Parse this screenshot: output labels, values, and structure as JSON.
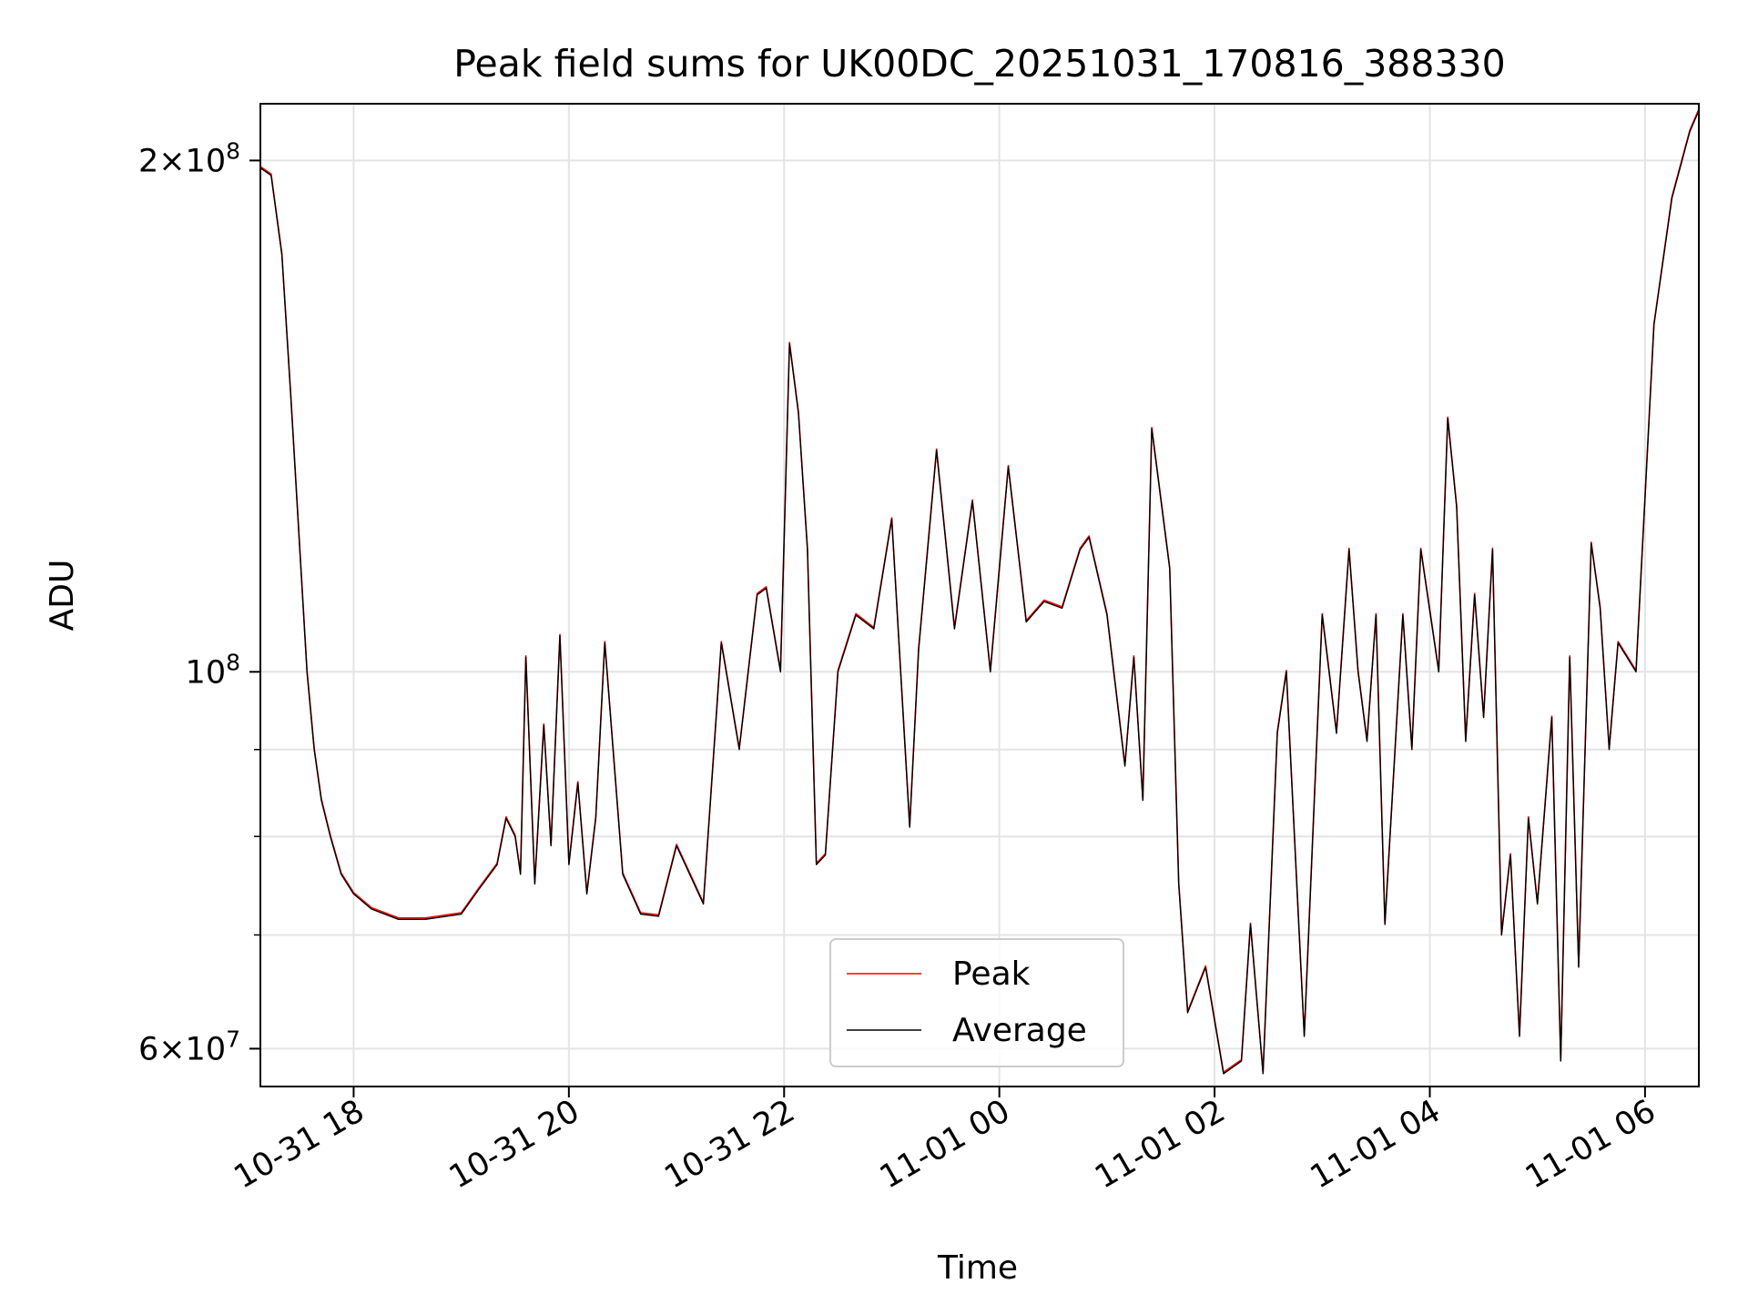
{
  "chart_data": {
    "type": "line",
    "title": "Peak field sums for UK00DC_20251031_170816_388330",
    "xlabel": "Time",
    "ylabel": "ADU",
    "yscale": "log",
    "xlim": [
      "2025-10-31T17:08",
      "2025-11-01T06:30"
    ],
    "ylim": [
      57000000,
      216000000
    ],
    "x_ticks": [
      {
        "value": "2025-10-31T18:00",
        "label": "10-31 18"
      },
      {
        "value": "2025-10-31T20:00",
        "label": "10-31 20"
      },
      {
        "value": "2025-10-31T22:00",
        "label": "10-31 22"
      },
      {
        "value": "2025-11-01T00:00",
        "label": "11-01 00"
      },
      {
        "value": "2025-11-01T02:00",
        "label": "11-01 02"
      },
      {
        "value": "2025-11-01T04:00",
        "label": "11-01 04"
      },
      {
        "value": "2025-11-01T06:00",
        "label": "11-01 06"
      }
    ],
    "y_major_ticks": [
      {
        "value": 60000000,
        "base": "6",
        "exp": "7"
      },
      {
        "value": 100000000,
        "base": "",
        "exp": "8"
      },
      {
        "value": 200000000,
        "base": "2",
        "exp": "8"
      }
    ],
    "y_minor_ticks": [
      70000000,
      80000000,
      90000000
    ],
    "grid": true,
    "legend": "bottom-center",
    "series": [
      {
        "name": "Peak",
        "color": "#ff0000"
      },
      {
        "name": "Average",
        "color": "#000000"
      }
    ],
    "x": [
      "2025-10-31T17:08",
      "2025-10-31T17:14",
      "2025-10-31T17:20",
      "2025-10-31T17:25",
      "2025-10-31T17:30",
      "2025-10-31T17:34",
      "2025-10-31T17:38",
      "2025-10-31T17:42",
      "2025-10-31T17:47",
      "2025-10-31T17:53",
      "2025-10-31T18:00",
      "2025-10-31T18:10",
      "2025-10-31T18:25",
      "2025-10-31T18:40",
      "2025-10-31T19:00",
      "2025-10-31T19:10",
      "2025-10-31T19:20",
      "2025-10-31T19:25",
      "2025-10-31T19:30",
      "2025-10-31T19:33",
      "2025-10-31T19:36",
      "2025-10-31T19:41",
      "2025-10-31T19:46",
      "2025-10-31T19:50",
      "2025-10-31T19:55",
      "2025-10-31T20:00",
      "2025-10-31T20:05",
      "2025-10-31T20:10",
      "2025-10-31T20:15",
      "2025-10-31T20:20",
      "2025-10-31T20:30",
      "2025-10-31T20:40",
      "2025-10-31T20:50",
      "2025-10-31T21:00",
      "2025-10-31T21:15",
      "2025-10-31T21:25",
      "2025-10-31T21:35",
      "2025-10-31T21:45",
      "2025-10-31T21:50",
      "2025-10-31T21:58",
      "2025-10-31T22:03",
      "2025-10-31T22:08",
      "2025-10-31T22:13",
      "2025-10-31T22:18",
      "2025-10-31T22:23",
      "2025-10-31T22:30",
      "2025-10-31T22:40",
      "2025-10-31T22:50",
      "2025-10-31T23:00",
      "2025-10-31T23:10",
      "2025-10-31T23:15",
      "2025-10-31T23:25",
      "2025-10-31T23:35",
      "2025-10-31T23:45",
      "2025-10-31T23:55",
      "2025-11-01T00:05",
      "2025-11-01T00:15",
      "2025-11-01T00:25",
      "2025-11-01T00:35",
      "2025-11-01T00:45",
      "2025-11-01T00:50",
      "2025-11-01T01:00",
      "2025-11-01T01:10",
      "2025-11-01T01:15",
      "2025-11-01T01:20",
      "2025-11-01T01:25",
      "2025-11-01T01:35",
      "2025-11-01T01:40",
      "2025-11-01T01:45",
      "2025-11-01T01:55",
      "2025-11-01T02:05",
      "2025-11-01T02:15",
      "2025-11-01T02:20",
      "2025-11-01T02:27",
      "2025-11-01T02:35",
      "2025-11-01T02:40",
      "2025-11-01T02:50",
      "2025-11-01T03:00",
      "2025-11-01T03:08",
      "2025-11-01T03:15",
      "2025-11-01T03:20",
      "2025-11-01T03:25",
      "2025-11-01T03:30",
      "2025-11-01T03:35",
      "2025-11-01T03:45",
      "2025-11-01T03:50",
      "2025-11-01T03:55",
      "2025-11-01T04:05",
      "2025-11-01T04:10",
      "2025-11-01T04:15",
      "2025-11-01T04:20",
      "2025-11-01T04:25",
      "2025-11-01T04:30",
      "2025-11-01T04:35",
      "2025-11-01T04:40",
      "2025-11-01T04:45",
      "2025-11-01T04:50",
      "2025-11-01T04:55",
      "2025-11-01T05:00",
      "2025-11-01T05:08",
      "2025-11-01T05:13",
      "2025-11-01T05:18",
      "2025-11-01T05:23",
      "2025-11-01T05:30",
      "2025-11-01T05:35",
      "2025-11-01T05:40",
      "2025-11-01T05:45",
      "2025-11-01T05:55",
      "2025-11-01T06:05",
      "2025-11-01T06:15",
      "2025-11-01T06:25",
      "2025-11-01T06:30"
    ],
    "values": [
      198000000,
      196000000,
      176000000,
      145000000,
      118000000,
      100000000,
      90000000,
      84000000,
      80000000,
      76000000,
      74000000,
      72500000,
      71500000,
      71500000,
      72000000,
      74500000,
      77000000,
      82000000,
      80000000,
      76000000,
      102000000,
      75000000,
      93000000,
      79000000,
      105000000,
      77000000,
      86000000,
      74000000,
      82000000,
      104000000,
      76000000,
      72000000,
      71800000,
      79000000,
      73000000,
      104000000,
      90000000,
      111000000,
      112000000,
      100000000,
      156000000,
      142000000,
      118000000,
      77000000,
      78000000,
      100000000,
      108000000,
      106000000,
      123000000,
      81000000,
      103000000,
      135000000,
      106000000,
      126000000,
      100000000,
      132000000,
      107000000,
      110000000,
      109000000,
      118000000,
      120000000,
      108000000,
      88000000,
      102000000,
      84000000,
      139000000,
      115000000,
      75000000,
      63000000,
      67000000,
      58000000,
      59000000,
      71000000,
      58000000,
      92000000,
      100000000,
      61000000,
      108000000,
      92000000,
      118000000,
      100000000,
      91000000,
      108000000,
      71000000,
      108000000,
      90000000,
      118000000,
      100000000,
      141000000,
      125000000,
      91000000,
      111000000,
      94000000,
      118000000,
      70000000,
      78000000,
      61000000,
      82000000,
      73000000,
      94000000,
      59000000,
      102000000,
      67000000,
      119000000,
      109000000,
      90000000,
      104000000,
      100000000,
      160000000,
      190000000,
      208000000,
      214000000
    ]
  }
}
